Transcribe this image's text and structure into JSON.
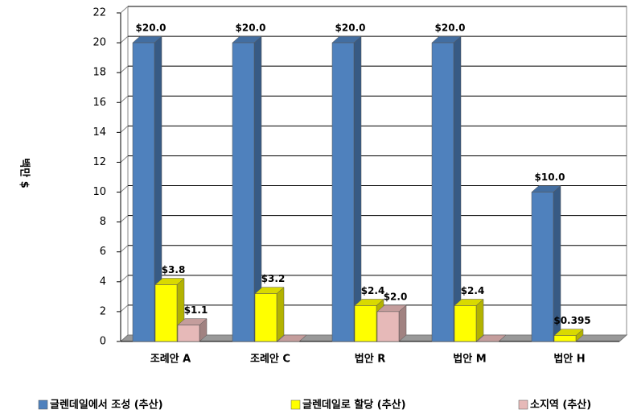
{
  "chart_data": {
    "type": "bar3d",
    "y_label": "백만 $",
    "categories": [
      "조례안 A",
      "조례안 C",
      "법안 R",
      "법안 M",
      "법안 H"
    ],
    "series": [
      {
        "name": "글렌데일에서 조성 (추산)",
        "color": "#4f81bd",
        "values": [
          20,
          20,
          20,
          20,
          10
        ],
        "value_labels": [
          "$20.0",
          "$20.0",
          "$20.0",
          "$20.0",
          "$10.0"
        ]
      },
      {
        "name": "글렌데일로 할당 (추산)",
        "color": "#ffff00",
        "values": [
          3.8,
          3.2,
          2.4,
          2.4,
          0.395
        ],
        "value_labels": [
          "$3.8",
          "$3.2",
          "$2.4",
          "$2.4",
          "$0.395"
        ]
      },
      {
        "name": "소지역 (추산)",
        "color": "#e6b9b8",
        "values": [
          1.1,
          0,
          2.0,
          0,
          null
        ],
        "value_labels": [
          "$1.1",
          null,
          "$2.0",
          null,
          null
        ]
      }
    ],
    "ylim": [
      0,
      22
    ],
    "yticks": [
      0,
      2,
      4,
      6,
      8,
      10,
      12,
      14,
      16,
      18,
      20,
      22
    ],
    "grid": true,
    "legend": "bottom"
  }
}
